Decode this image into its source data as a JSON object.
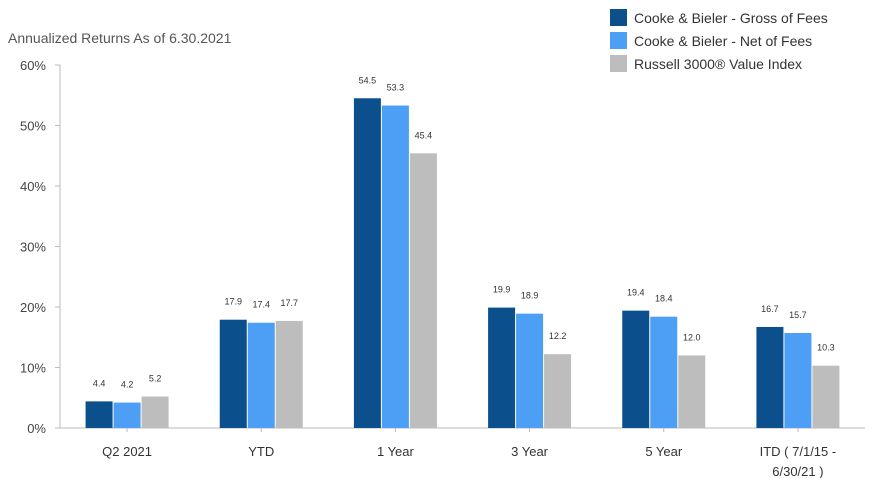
{
  "chart_data": {
    "type": "bar",
    "subtitle": "Annualized Returns As of 6.30.2021",
    "categories": [
      "Q2 2021",
      "YTD",
      "1 Year",
      "3 Year",
      "5 Year",
      "ITD ( 7/1/15 - 6/30/21 )"
    ],
    "category_lines": [
      [
        "Q2 2021"
      ],
      [
        "YTD"
      ],
      [
        "1 Year"
      ],
      [
        "3 Year"
      ],
      [
        "5 Year"
      ],
      [
        "ITD ( 7/1/15 -",
        "6/30/21 )"
      ]
    ],
    "series": [
      {
        "name": "Cooke & Bieler - Gross of Fees",
        "color": "#0b4f8c",
        "values": [
          4.4,
          17.9,
          54.5,
          19.9,
          19.4,
          16.7
        ]
      },
      {
        "name": "Cooke & Bieler - Net of Fees",
        "color": "#4d9ef5",
        "values": [
          4.2,
          17.4,
          53.3,
          18.9,
          18.4,
          15.7
        ]
      },
      {
        "name": "Russell 3000® Value Index",
        "color": "#bdbdbd",
        "values": [
          5.2,
          17.7,
          45.4,
          12.2,
          12.0,
          10.3
        ]
      }
    ],
    "ylim": [
      0,
      60
    ],
    "yticks": [
      0,
      10,
      20,
      30,
      40,
      50,
      60
    ],
    "ytick_labels": [
      "0%",
      "10%",
      "20%",
      "30%",
      "40%",
      "50%",
      "60%"
    ],
    "legend_position": "top-right",
    "grid": false
  }
}
